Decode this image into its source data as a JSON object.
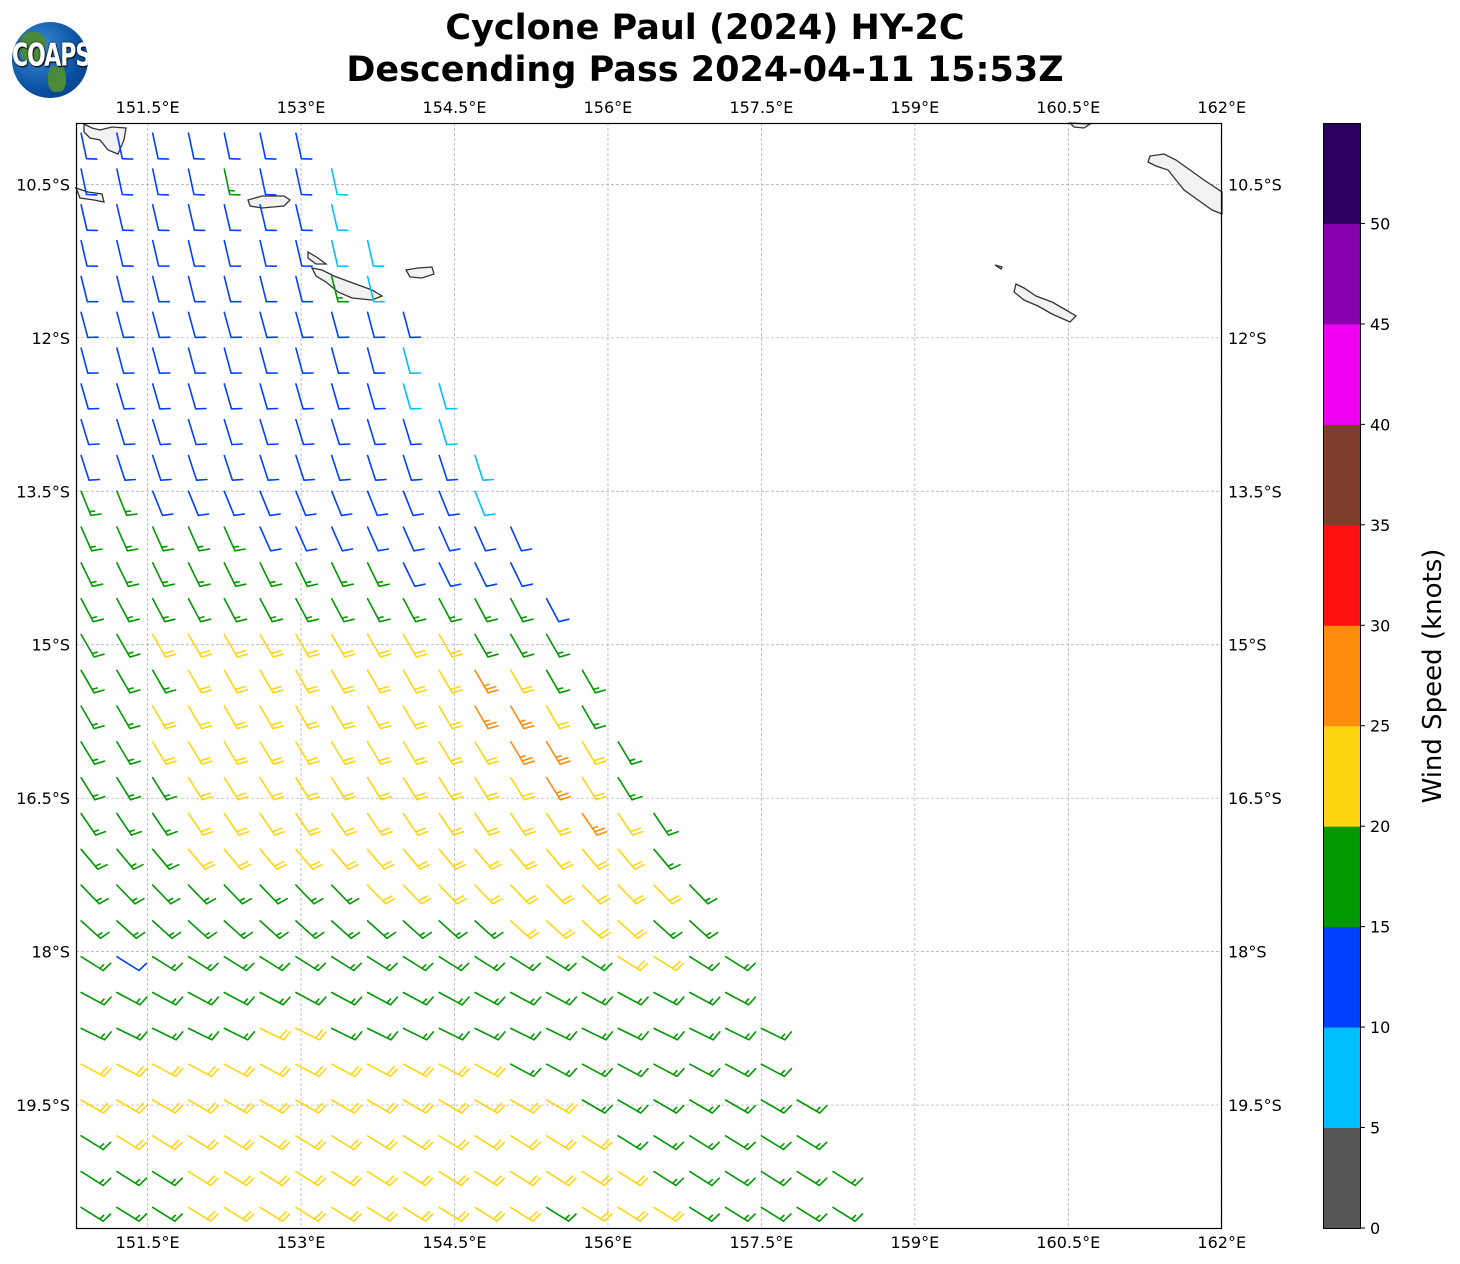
{
  "title_line1": "Cyclone Paul (2024) HY-2C",
  "title_line2": "Descending Pass 2024-04-11 15:53Z",
  "logo_text": "COAPS",
  "chart_data": {
    "type": "wind-barb-map",
    "lon_range": [
      150.8,
      162.0
    ],
    "lat_range_south": [
      9.9,
      20.7
    ],
    "lon_ticks": [
      151.5,
      153,
      154.5,
      156,
      157.5,
      159,
      160.5,
      162
    ],
    "lon_tick_labels": [
      "151.5°E",
      "153°E",
      "154.5°E",
      "156°E",
      "157.5°E",
      "159°E",
      "160.5°E",
      "162°E"
    ],
    "lat_ticks": [
      10.5,
      12,
      13.5,
      15,
      16.5,
      18,
      19.5
    ],
    "lat_tick_labels": [
      "10.5°S",
      "12°S",
      "13.5°S",
      "15°S",
      "16.5°S",
      "18°S",
      "19.5°S"
    ],
    "grid": true,
    "colorbar": {
      "label": "Wind Speed (knots)",
      "bounds": [
        0,
        5,
        10,
        15,
        20,
        25,
        30,
        35,
        40,
        45,
        50,
        55
      ],
      "colors": [
        "#555555",
        "#00bfff",
        "#0040ff",
        "#009900",
        "#ffd511",
        "#ff8c0a",
        "#ff1010",
        "#7f3f2a",
        "#f000f0",
        "#8800b0",
        "#2c0060"
      ],
      "tick_values": [
        0,
        5,
        10,
        15,
        20,
        25,
        30,
        35,
        40,
        45,
        50
      ],
      "tick_labels": [
        "0",
        "5",
        "10",
        "15",
        "20",
        "25",
        "30",
        "35",
        "40",
        "45",
        "50"
      ]
    },
    "barbs": {
      "lat0": 10.0,
      "lon0": 150.85,
      "step_deg": 0.35,
      "speed_codes_knots": {
        "c": 8,
        "b": 12,
        "g": 17,
        "y": 22,
        "o": 27
      },
      "rows": [
        "bbbbbbb",
        "bbbbgbbc",
        "bbbbbbbc",
        "bbbbbbbcc",
        "bbbbbbbgc",
        "bbbbbbbbbb",
        "bbbbbbbbbc",
        "bbbbbbbbbcc",
        "bbbbbbbbbbc",
        "bbbbbbbbbbbc",
        "ggbbbbbbbbbc",
        "gggggbbbbbbbb",
        "gggggggggbbbb",
        "gggggggggggggb",
        "ggyyyyyyyyyggg",
        "gggyyyyyyyyoygg",
        "ggyyyyyyyyyooyg",
        "ggyyyyyyyyyyooyg",
        "gggyyyyyyyyyyoyg",
        "gggyyyyyyyyyyyoyg",
        "gggyyyyyyyyyyyyyg",
        "ggggggggyyyyyyyyyg",
        "ggggggggggggyyyygg",
        "gbgggggggggggggyygg",
        "ggggggggggggggggggg",
        "gggggyyggggggggggggg",
        "yyyyyyyyyyyygggggggg",
        "yyyyyyyyyyyyyyggggggg",
        "gyyyyyyyyyyyyyygggggg",
        "gggyyyyyyyyyyyyygggggg",
        "gggyyyyyyyyyygyyyggggg"
      ],
      "row_direction_from_deg": [
        168,
        168,
        167,
        167,
        166,
        165,
        165,
        164,
        163,
        162,
        158,
        156,
        154,
        152,
        150,
        150,
        150,
        149,
        148,
        146,
        140,
        136,
        132,
        122,
        118,
        116,
        118,
        120,
        122,
        122,
        122
      ]
    }
  }
}
